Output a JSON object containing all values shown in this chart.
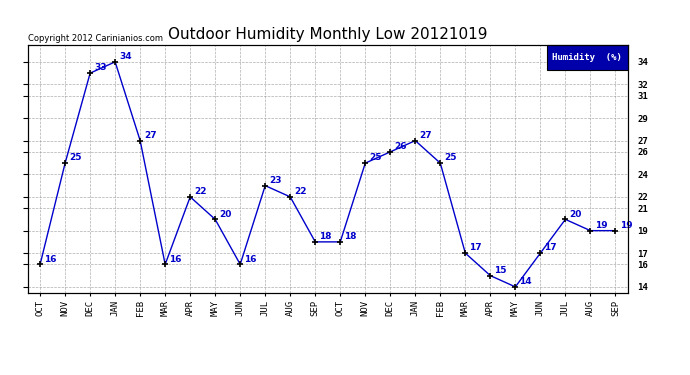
{
  "title": "Outdoor Humidity Monthly Low 20121019",
  "categories": [
    "OCT",
    "NOV",
    "DEC",
    "JAN",
    "FEB",
    "MAR",
    "APR",
    "MAY",
    "JUN",
    "JUL",
    "AUG",
    "SEP",
    "OCT",
    "NOV",
    "DEC",
    "JAN",
    "FEB",
    "MAR",
    "APR",
    "MAY",
    "JUN",
    "JUL",
    "AUG",
    "SEP"
  ],
  "values": [
    16,
    25,
    33,
    34,
    27,
    16,
    22,
    20,
    16,
    23,
    22,
    18,
    18,
    25,
    26,
    27,
    25,
    17,
    15,
    14,
    17,
    20,
    19,
    19
  ],
  "ylim": [
    13.5,
    35.5
  ],
  "yticks": [
    14,
    16,
    17,
    19,
    21,
    22,
    24,
    26,
    27,
    29,
    31,
    32,
    34
  ],
  "line_color": "#0000cc",
  "marker_color": "#000000",
  "bg_color": "#ffffff",
  "grid_color": "#999999",
  "copyright_text": "Copyright 2012 Carinianios.com",
  "legend_label": "Humidity  (%)",
  "legend_bg": "#0000aa",
  "legend_text_color": "#ffffff",
  "title_fontsize": 11,
  "label_fontsize": 6.5,
  "tick_fontsize": 6.5,
  "copyright_fontsize": 6.0
}
